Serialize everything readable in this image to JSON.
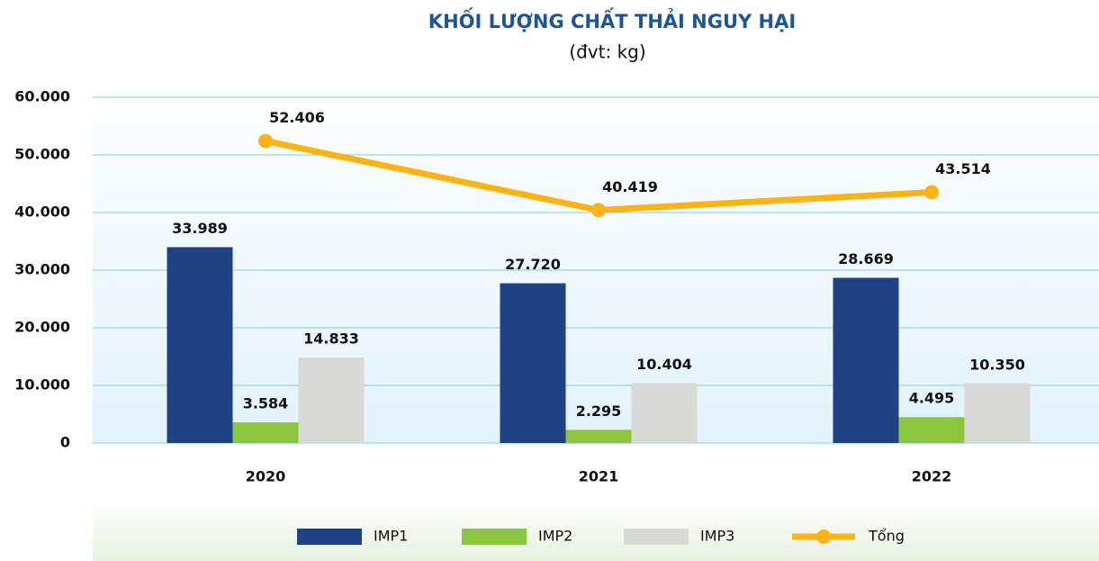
{
  "chart_data": {
    "type": "bar",
    "title": "KHỐI LƯỢNG CHẤT THẢI NGUY HẠI",
    "subtitle": "(đvt: kg)",
    "categories": [
      "2020",
      "2021",
      "2022"
    ],
    "series": [
      {
        "name": "IMP1",
        "color": "#1f4282",
        "values": [
          33989,
          27720,
          28669
        ],
        "value_labels": [
          "33.989",
          "27.720",
          "28.669"
        ]
      },
      {
        "name": "IMP2",
        "color": "#8cc63f",
        "values": [
          3584,
          2295,
          4495
        ],
        "value_labels": [
          "3.584",
          "2.295",
          "4.495"
        ]
      },
      {
        "name": "IMP3",
        "color": "#d9d9d6",
        "values": [
          14833,
          10404,
          10350
        ],
        "value_labels": [
          "14.833",
          "10.404",
          "10.350"
        ]
      },
      {
        "name": "Tổng",
        "type": "line",
        "color": "#fbb416",
        "values": [
          52406,
          40419,
          43514
        ],
        "value_labels": [
          "52.406",
          "40.419",
          "43.514"
        ]
      }
    ],
    "ylim": [
      0,
      60000
    ],
    "yticks": [
      0,
      {
        "value": 10000,
        "label": "10.000"
      },
      {
        "value": 20000,
        "label": "20.000"
      },
      {
        "value": 30000,
        "label": "30.000"
      },
      {
        "value": 40000,
        "label": "40.000"
      },
      {
        "value": 50000,
        "label": "50.000"
      },
      {
        "value": 60000,
        "label": "60.000"
      }
    ],
    "grid": true,
    "legend": "bottom"
  }
}
